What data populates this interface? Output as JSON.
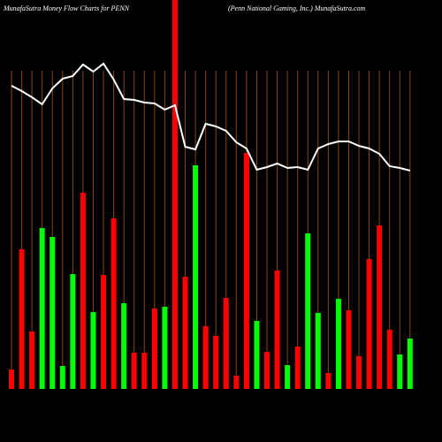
{
  "chart_data": {
    "type": "bar",
    "title": "MunafaSutra  Money Flow  Charts for PENN",
    "subtitle": "(Penn  National Gaming,  Inc.) MunafaSutra.com",
    "categories": [
      null,
      null,
      null,
      null,
      null,
      null,
      null,
      null,
      null,
      null,
      null,
      null,
      null,
      null,
      null,
      null,
      null,
      null,
      null,
      null,
      null,
      null,
      null,
      null,
      null,
      null,
      null,
      null,
      null,
      null,
      null,
      null,
      null,
      null,
      null,
      null,
      null,
      null,
      null,
      null
    ],
    "values": [
      22,
      158,
      65,
      182,
      172,
      26,
      130,
      222,
      87,
      129,
      193,
      97,
      41,
      41,
      91,
      93,
      440,
      127,
      253,
      71,
      60,
      103,
      15,
      267,
      77,
      42,
      134,
      27,
      48,
      176,
      86,
      18,
      102,
      89,
      37,
      147,
      185,
      67,
      39,
      57
    ],
    "colors": [
      "#ff0000",
      "#ff0000",
      "#ff0000",
      "#00ff00",
      "#00ff00",
      "#00ff00",
      "#00ff00",
      "#ff0000",
      "#00ff00",
      "#ff0000",
      "#ff0000",
      "#00ff00",
      "#ff0000",
      "#ff0000",
      "#ff0000",
      "#00ff00",
      "#ff0000",
      "#ff0000",
      "#00ff00",
      "#ff0000",
      "#ff0000",
      "#ff0000",
      "#ff0000",
      "#ff0000",
      "#00ff00",
      "#ff0000",
      "#ff0000",
      "#00ff00",
      "#ff0000",
      "#00ff00",
      "#00ff00",
      "#ff0000",
      "#00ff00",
      "#ff0000",
      "#ff0000",
      "#ff0000",
      "#ff0000",
      "#ff0000",
      "#00ff00",
      "#00ff00"
    ],
    "line": {
      "color": "#ffffff",
      "values": [
        343,
        337,
        330,
        322,
        340,
        351,
        354,
        367,
        359,
        368,
        350,
        328,
        327,
        324,
        323,
        316,
        321,
        274,
        271,
        300,
        297,
        292,
        279,
        272,
        248,
        251,
        255,
        250,
        251,
        248,
        272,
        277,
        280,
        280,
        275,
        272,
        266,
        252,
        250,
        247
      ]
    },
    "grid_color": "#8b4513",
    "ylim": [
      0,
      440
    ]
  }
}
